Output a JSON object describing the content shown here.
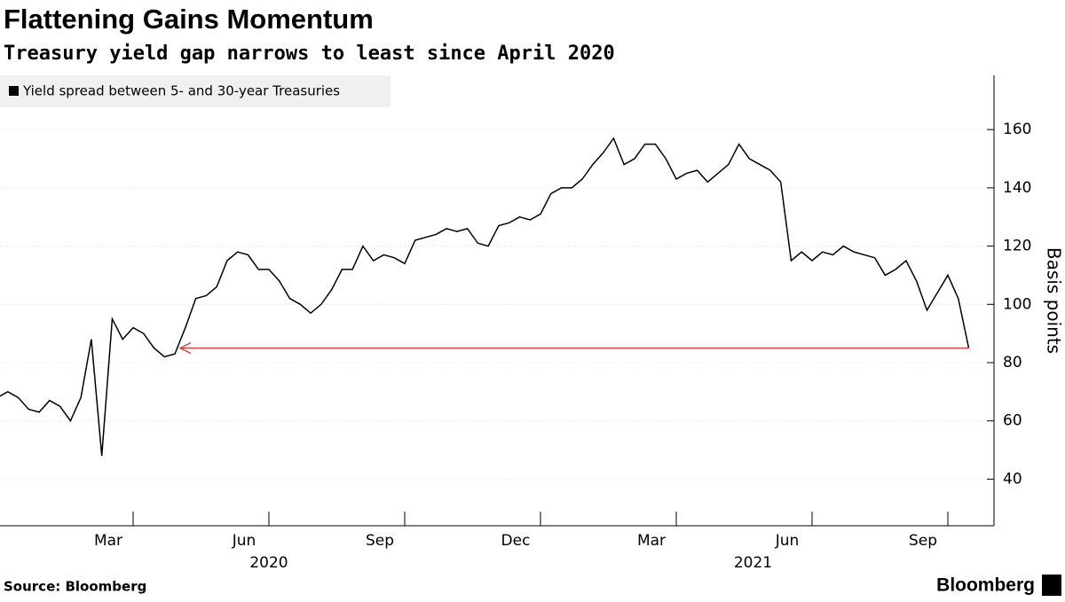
{
  "chart_data": {
    "type": "line",
    "title": "Flattening Gains Momentum",
    "subtitle": "Treasury yield gap narrows to least since April 2020",
    "y_label": "Basis points",
    "source": "Source: Bloomberg",
    "brand": "Bloomberg",
    "categories": [
      null,
      null,
      null,
      null,
      null,
      null,
      null,
      null,
      null,
      null,
      null,
      null,
      null,
      "Mar",
      null,
      null,
      null,
      null,
      null,
      null,
      null,
      null,
      null,
      null,
      null,
      null,
      "Jun",
      null,
      null,
      null,
      null,
      null,
      null,
      null,
      null,
      null,
      null,
      null,
      null,
      "Sep",
      null,
      null,
      null,
      null,
      null,
      null,
      null,
      null,
      null,
      null,
      null,
      null,
      "Dec",
      null,
      null,
      null,
      null,
      null,
      null,
      null,
      null,
      null,
      null,
      null,
      null,
      "Mar",
      null,
      null,
      null,
      null,
      null,
      null,
      null,
      null,
      null,
      null,
      null,
      null,
      "Jun",
      null,
      null,
      null,
      null,
      null,
      null,
      null,
      null,
      null,
      null,
      null,
      null,
      "Sep",
      null,
      null
    ],
    "x_group_labels": [
      "2020",
      "2021"
    ],
    "series": [
      {
        "name": "Yield spread between 5- and 30-year Treasuries",
        "color": "#000000",
        "values": [
          68,
          70,
          68,
          64,
          63,
          67,
          65,
          60,
          68,
          88,
          48,
          95,
          88,
          92,
          90,
          85,
          82,
          83,
          92,
          102,
          103,
          106,
          115,
          118,
          117,
          112,
          112,
          108,
          102,
          100,
          97,
          100,
          105,
          112,
          112,
          120,
          115,
          117,
          116,
          114,
          122,
          123,
          124,
          126,
          125,
          126,
          121,
          120,
          127,
          128,
          130,
          129,
          131,
          138,
          140,
          140,
          143,
          148,
          152,
          157,
          148,
          150,
          155,
          155,
          150,
          143,
          145,
          146,
          142,
          145,
          148,
          155,
          150,
          148,
          146,
          142,
          115,
          118,
          115,
          118,
          117,
          120,
          118,
          117,
          116,
          110,
          112,
          115,
          108,
          98,
          104,
          110,
          102,
          85
        ]
      }
    ],
    "ylim": [
      24,
      178
    ],
    "yticks": [
      40,
      60,
      80,
      100,
      120,
      140,
      160
    ],
    "grid": true,
    "annotation_color": "#d9302f"
  }
}
